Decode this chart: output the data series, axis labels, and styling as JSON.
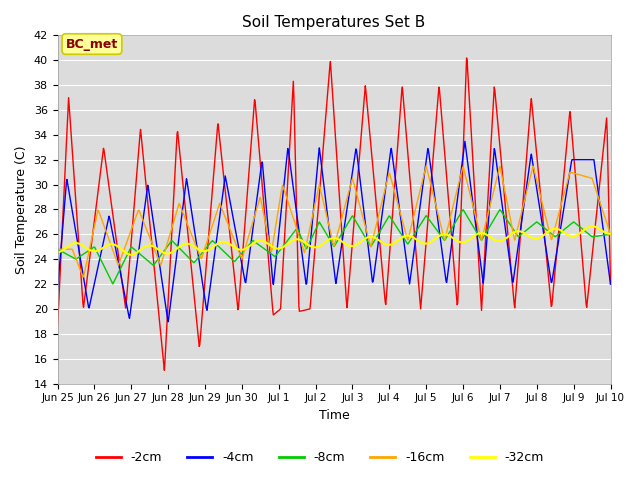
{
  "title": "Soil Temperatures Set B",
  "xlabel": "Time",
  "ylabel": "Soil Temperature (C)",
  "ylim": [
    14,
    42
  ],
  "yticks": [
    14,
    16,
    18,
    20,
    22,
    24,
    26,
    28,
    30,
    32,
    34,
    36,
    38,
    40,
    42
  ],
  "annotation_text": "BC_met",
  "annotation_color": "#8B0000",
  "annotation_bg": "#FFFF99",
  "annotation_edge": "#CCCC00",
  "plot_bg": "#DCDCDC",
  "grid_color": "#FFFFFF",
  "colors": {
    "-2cm": "#FF0000",
    "-4cm": "#0000FF",
    "-8cm": "#00CC00",
    "-16cm": "#FFA500",
    "-32cm": "#FFFF00"
  },
  "legend_labels": [
    "-2cm",
    "-4cm",
    "-8cm",
    "-16cm",
    "-32cm"
  ],
  "x_tick_labels": [
    "Jun 25",
    "Jun 26",
    "Jun 27",
    "Jun 28",
    "Jun 29",
    "Jun 30",
    "Jul 1",
    "Jul 2",
    "Jul 3",
    "Jul 4",
    "Jul 5",
    "Jul 6",
    "Jul 7",
    "Jul 8",
    "Jul 9",
    "Jul 10"
  ],
  "n_points": 1000,
  "total_days": 15
}
